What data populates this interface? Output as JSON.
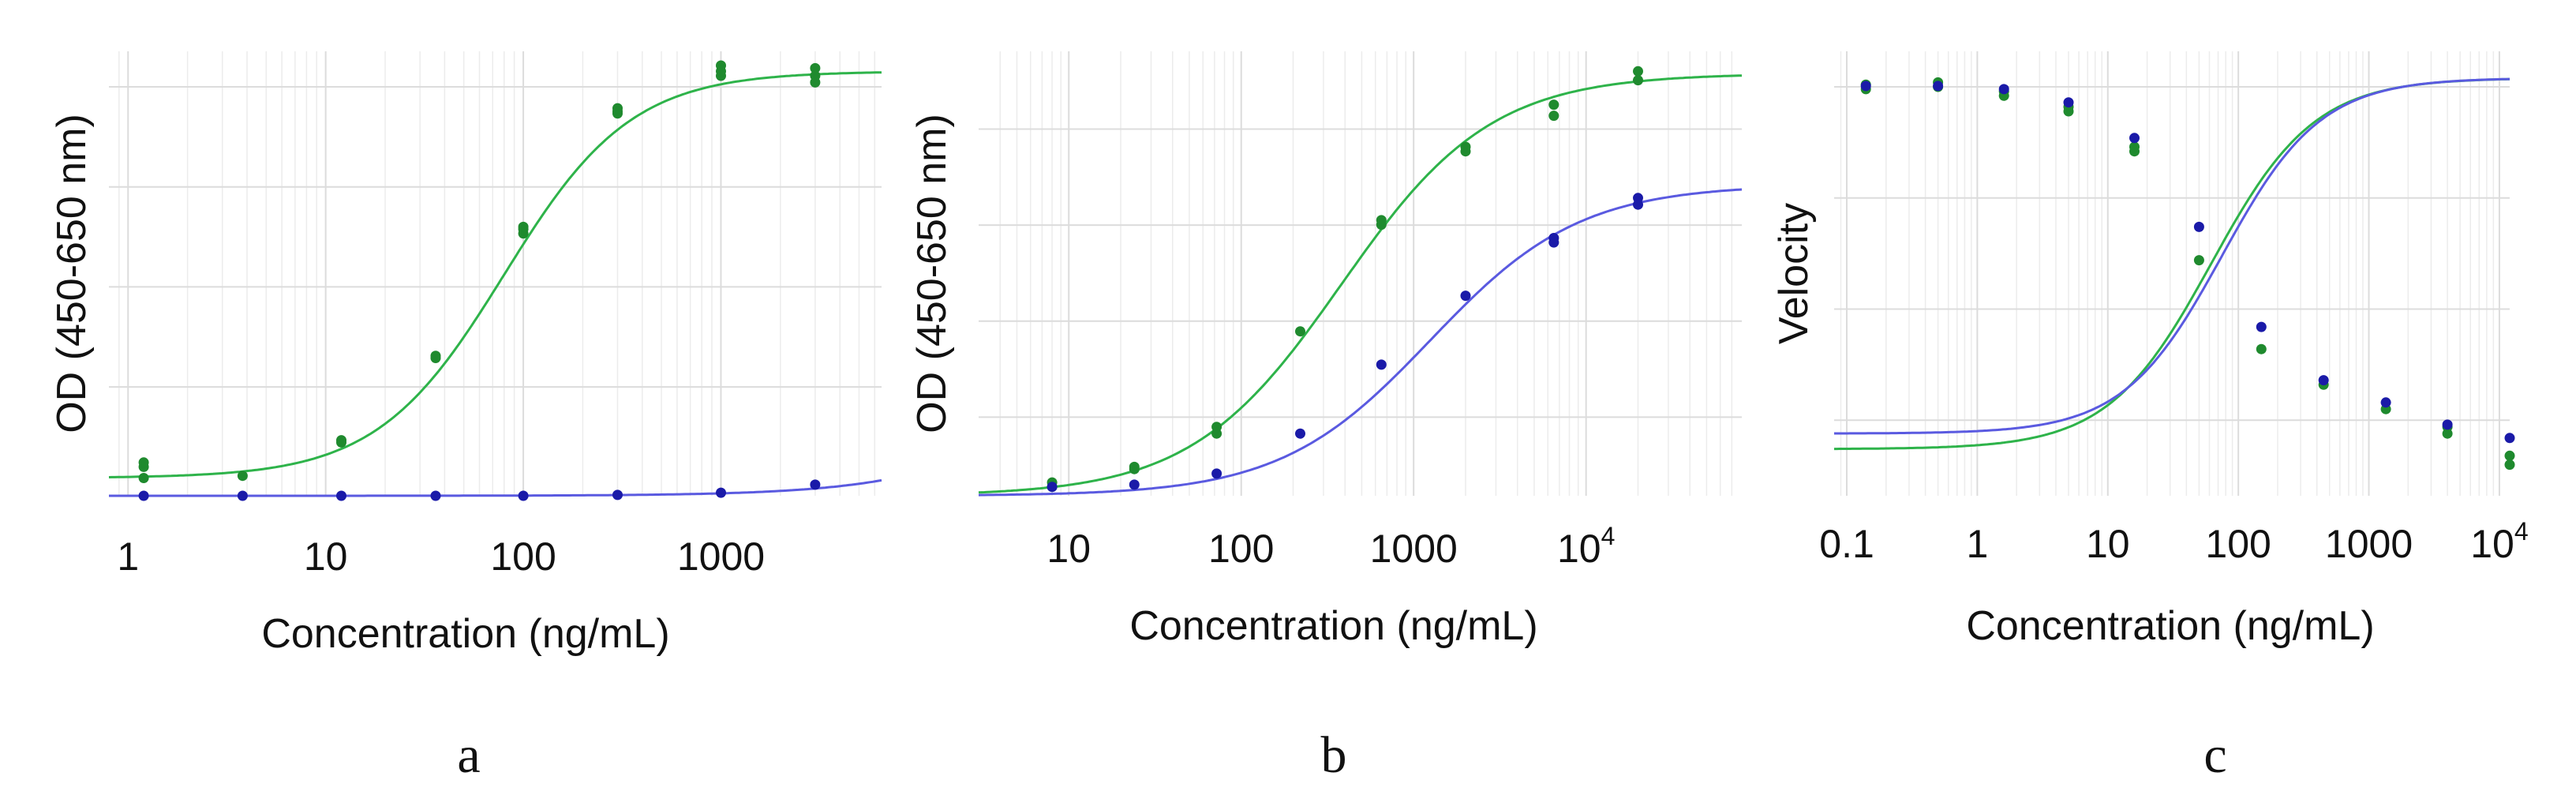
{
  "colors": {
    "green": "#2eb34a",
    "green_point": "#1f8a2e",
    "blue": "#5a5ae0",
    "blue_point": "#1a1aa8"
  },
  "chart_data": [
    {
      "id": "a",
      "type": "scatter",
      "panel_label": "a",
      "xlabel": "Concentration (ng/mL)",
      "ylabel": "OD (450-650 nm)",
      "xscale": "log",
      "xlim": [
        0.8,
        6500
      ],
      "ylim": [
        0,
        1
      ],
      "xticks": [
        {
          "v": 1,
          "t": "1"
        },
        {
          "v": 10,
          "t": "10"
        },
        {
          "v": 100,
          "t": "100"
        },
        {
          "v": 1000,
          "t": "1000"
        }
      ],
      "yticks": [
        0.245,
        0.47,
        0.695,
        0.92
      ],
      "series": [
        {
          "name": "green",
          "color": "green",
          "curve": {
            "bottom": 0.04,
            "top": 0.955,
            "ec50": 80,
            "hill": 1.35
          },
          "points": [
            [
              1.2,
              0.04
            ],
            [
              1.2,
              0.065
            ],
            [
              1.2,
              0.075
            ],
            [
              3.8,
              0.045
            ],
            [
              12,
              0.12
            ],
            [
              12,
              0.125
            ],
            [
              36,
              0.31
            ],
            [
              36,
              0.315
            ],
            [
              100,
              0.59
            ],
            [
              100,
              0.6
            ],
            [
              100,
              0.605
            ],
            [
              300,
              0.86
            ],
            [
              300,
              0.865
            ],
            [
              300,
              0.872
            ],
            [
              1000,
              0.945
            ],
            [
              1000,
              0.955
            ],
            [
              1000,
              0.968
            ],
            [
              3000,
              0.93
            ],
            [
              3000,
              0.945
            ],
            [
              3000,
              0.962
            ]
          ]
        },
        {
          "name": "blue",
          "color": "blue",
          "curve": {
            "bottom": 0.0,
            "top": 1.0,
            "ec50": 180000,
            "hill": 1.0
          },
          "points": [
            [
              1.2,
              0.0
            ],
            [
              3.8,
              0.0
            ],
            [
              12,
              0.0
            ],
            [
              36,
              0.0
            ],
            [
              100,
              0.0
            ],
            [
              300,
              0.002
            ],
            [
              1000,
              0.007
            ],
            [
              3000,
              0.025
            ]
          ]
        }
      ]
    },
    {
      "id": "b",
      "type": "scatter",
      "panel_label": "b",
      "xlabel": "Concentration (ng/mL)",
      "ylabel": "OD (450-650 nm)",
      "xscale": "log",
      "xlim": [
        3,
        80000
      ],
      "ylim": [
        0,
        1
      ],
      "xticks": [
        {
          "v": 10,
          "t": "10"
        },
        {
          "v": 100,
          "t": "100"
        },
        {
          "v": 1000,
          "t": "1000"
        },
        {
          "v": 10000,
          "t": "10",
          "sup": "4"
        }
      ],
      "yticks": [
        0.177,
        0.393,
        0.609,
        0.825
      ],
      "series": [
        {
          "name": "green",
          "color": "green",
          "curve": {
            "bottom": 0.0,
            "top": 0.95,
            "ec50": 380,
            "hill": 1.0
          },
          "points": [
            [
              8,
              0.02
            ],
            [
              8,
              0.03
            ],
            [
              24,
              0.06
            ],
            [
              24,
              0.065
            ],
            [
              72,
              0.14
            ],
            [
              72,
              0.155
            ],
            [
              220,
              0.37
            ],
            [
              650,
              0.61
            ],
            [
              650,
              0.62
            ],
            [
              2000,
              0.775
            ],
            [
              2000,
              0.785
            ],
            [
              6500,
              0.855
            ],
            [
              6500,
              0.88
            ],
            [
              20000,
              0.935
            ],
            [
              20000,
              0.955
            ]
          ]
        },
        {
          "name": "blue",
          "color": "blue",
          "curve": {
            "bottom": 0.0,
            "top": 0.7,
            "ec50": 1250,
            "hill": 1.0
          },
          "points": [
            [
              8,
              0.02
            ],
            [
              24,
              0.025
            ],
            [
              72,
              0.05
            ],
            [
              220,
              0.14
            ],
            [
              650,
              0.295
            ],
            [
              2000,
              0.45
            ],
            [
              6500,
              0.57
            ],
            [
              6500,
              0.58
            ],
            [
              20000,
              0.655
            ],
            [
              20000,
              0.67
            ]
          ]
        }
      ]
    },
    {
      "id": "c",
      "type": "scatter",
      "panel_label": "c",
      "xlabel": "Concentration (ng/mL)",
      "ylabel": "Velocity",
      "xscale": "log",
      "xlim": [
        0.08,
        12000
      ],
      "ylim": [
        0,
        1
      ],
      "xticks": [
        {
          "v": 0.1,
          "t": "0.1"
        },
        {
          "v": 1,
          "t": "1"
        },
        {
          "v": 10,
          "t": "10"
        },
        {
          "v": 100,
          "t": "100"
        },
        {
          "v": 1000,
          "t": "1000"
        },
        {
          "v": 10000,
          "t": "10",
          "sup": "4"
        }
      ],
      "yticks": [
        0.17,
        0.42,
        0.67,
        0.92
      ],
      "series": [
        {
          "name": "green",
          "color": "green",
          "curve": {
            "bottom": 0.105,
            "top": 0.94,
            "ec50": 62,
            "hill": 1.1
          },
          "points": [
            [
              0.14,
              0.915
            ],
            [
              0.14,
              0.925
            ],
            [
              0.5,
              0.92
            ],
            [
              0.5,
              0.93
            ],
            [
              1.6,
              0.9
            ],
            [
              1.6,
              0.91
            ],
            [
              5,
              0.865
            ],
            [
              5,
              0.875
            ],
            [
              16,
              0.775
            ],
            [
              16,
              0.785
            ],
            [
              50,
              0.53
            ],
            [
              150,
              0.33
            ],
            [
              450,
              0.25
            ],
            [
              1350,
              0.195
            ],
            [
              4000,
              0.14
            ],
            [
              4000,
              0.155
            ],
            [
              12000,
              0.07
            ],
            [
              12000,
              0.09
            ]
          ]
        },
        {
          "name": "blue",
          "color": "blue",
          "curve": {
            "bottom": 0.14,
            "top": 0.94,
            "ec50": 75,
            "hill": 1.15
          },
          "points": [
            [
              0.14,
              0.922
            ],
            [
              0.5,
              0.922
            ],
            [
              1.6,
              0.915
            ],
            [
              5,
              0.885
            ],
            [
              16,
              0.805
            ],
            [
              50,
              0.605
            ],
            [
              150,
              0.38
            ],
            [
              450,
              0.26
            ],
            [
              1350,
              0.21
            ],
            [
              4000,
              0.16
            ],
            [
              12000,
              0.13
            ]
          ]
        }
      ]
    }
  ]
}
